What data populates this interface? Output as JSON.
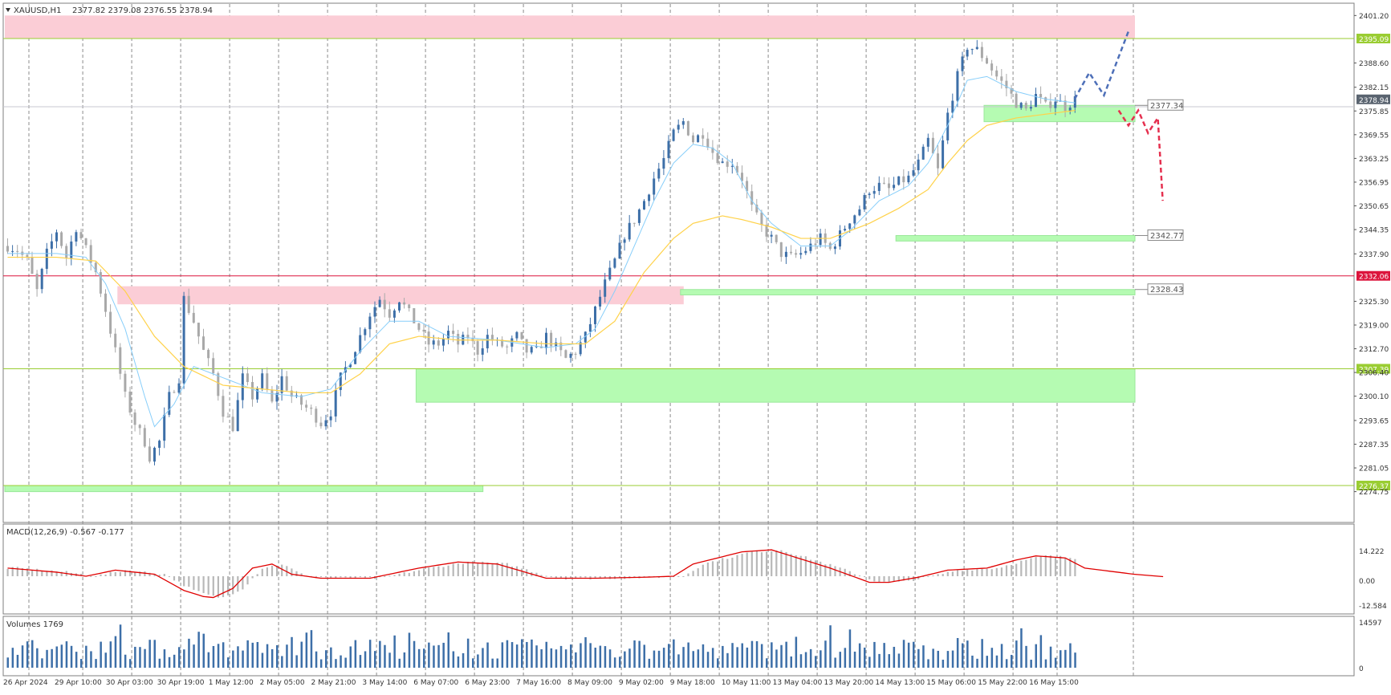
{
  "chart_header": {
    "symbol": "XAUUSD,H1",
    "ohlc": "2377.82 2379.08 2376.55 2378.94"
  },
  "chart_data": [
    {
      "type": "candlestick",
      "panel": "price",
      "symbol": "XAUUSD,H1",
      "y_ticks": [
        "2401.20",
        "2395.09",
        "2388.60",
        "2382.15",
        "2378.94",
        "2375.85",
        "2369.55",
        "2363.25",
        "2356.95",
        "2350.65",
        "2344.35",
        "2337.90",
        "2332.06",
        "2325.30",
        "2319.00",
        "2312.70",
        "2307.39",
        "2306.40",
        "2300.10",
        "2293.65",
        "2287.35",
        "2281.05",
        "2276.37",
        "2274.75"
      ],
      "ylim": [
        2274.75,
        2401.2
      ],
      "x_labels": [
        "26 Apr 2024",
        "29 Apr 10:00",
        "30 Apr 03:00",
        "30 Apr 19:00",
        "1 May 12:00",
        "2 May 05:00",
        "2 May 21:00",
        "3 May 14:00",
        "6 May 07:00",
        "6 May 23:00",
        "7 May 16:00",
        "8 May 09:00",
        "9 May 02:00",
        "9 May 18:00",
        "10 May 11:00",
        "13 May 04:00",
        "13 May 20:00",
        "14 May 13:00",
        "15 May 06:00",
        "15 May 22:00",
        "16 May 15:00"
      ],
      "price_path": [
        [
          0,
          2340
        ],
        [
          2,
          2339
        ],
        [
          4,
          2336
        ],
        [
          6,
          2328
        ],
        [
          8,
          2338
        ],
        [
          10,
          2344
        ],
        [
          12,
          2337
        ],
        [
          14,
          2345
        ],
        [
          16,
          2339
        ],
        [
          18,
          2333
        ],
        [
          20,
          2323
        ],
        [
          22,
          2312
        ],
        [
          24,
          2300
        ],
        [
          26,
          2293
        ],
        [
          28,
          2288
        ],
        [
          29,
          2284
        ],
        [
          31,
          2288
        ],
        [
          33,
          2300
        ],
        [
          35,
          2305
        ],
        [
          36,
          2326
        ],
        [
          38,
          2320
        ],
        [
          40,
          2312
        ],
        [
          42,
          2306
        ],
        [
          44,
          2296
        ],
        [
          46,
          2292
        ],
        [
          48,
          2305
        ],
        [
          50,
          2300
        ],
        [
          52,
          2305
        ],
        [
          54,
          2298
        ],
        [
          56,
          2305
        ],
        [
          58,
          2300
        ],
        [
          60,
          2298
        ],
        [
          62,
          2296
        ],
        [
          64,
          2293
        ],
        [
          66,
          2296
        ],
        [
          68,
          2305
        ],
        [
          70,
          2310
        ],
        [
          72,
          2316
        ],
        [
          74,
          2322
        ],
        [
          76,
          2326
        ],
        [
          78,
          2322
        ],
        [
          80,
          2326
        ],
        [
          82,
          2322
        ],
        [
          84,
          2318
        ],
        [
          86,
          2314
        ],
        [
          88,
          2314
        ],
        [
          90,
          2317
        ],
        [
          92,
          2314
        ],
        [
          94,
          2316
        ],
        [
          96,
          2312
        ],
        [
          98,
          2316
        ],
        [
          100,
          2314
        ],
        [
          102,
          2313
        ],
        [
          104,
          2316
        ],
        [
          106,
          2312
        ],
        [
          108,
          2312
        ],
        [
          110,
          2316
        ],
        [
          112,
          2313
        ],
        [
          114,
          2310
        ],
        [
          116,
          2312
        ],
        [
          118,
          2316
        ],
        [
          120,
          2323
        ],
        [
          122,
          2330
        ],
        [
          124,
          2336
        ],
        [
          126,
          2343
        ],
        [
          128,
          2347
        ],
        [
          130,
          2352
        ],
        [
          132,
          2358
        ],
        [
          134,
          2363
        ],
        [
          136,
          2370
        ],
        [
          138,
          2373
        ],
        [
          140,
          2368
        ],
        [
          142,
          2370
        ],
        [
          144,
          2365
        ],
        [
          146,
          2362
        ],
        [
          148,
          2362
        ],
        [
          150,
          2358
        ],
        [
          152,
          2350
        ],
        [
          154,
          2345
        ],
        [
          156,
          2342
        ],
        [
          158,
          2338
        ],
        [
          160,
          2337
        ],
        [
          162,
          2338
        ],
        [
          164,
          2340
        ],
        [
          166,
          2342
        ],
        [
          168,
          2339
        ],
        [
          170,
          2343
        ],
        [
          172,
          2347
        ],
        [
          174,
          2350
        ],
        [
          176,
          2355
        ],
        [
          178,
          2356
        ],
        [
          180,
          2355
        ],
        [
          182,
          2357
        ],
        [
          184,
          2358
        ],
        [
          186,
          2362
        ],
        [
          188,
          2368
        ],
        [
          190,
          2360
        ],
        [
          192,
          2375
        ],
        [
          194,
          2385
        ],
        [
          196,
          2393
        ],
        [
          198,
          2392
        ],
        [
          200,
          2389
        ],
        [
          202,
          2385
        ],
        [
          204,
          2382
        ],
        [
          206,
          2378
        ],
        [
          208,
          2376
        ],
        [
          210,
          2380
        ],
        [
          212,
          2377
        ],
        [
          214,
          2379
        ],
        [
          216,
          2377
        ],
        [
          218,
          2378.94
        ]
      ],
      "ema_fast": [
        [
          0,
          2338
        ],
        [
          10,
          2338
        ],
        [
          16,
          2337
        ],
        [
          20,
          2330
        ],
        [
          24,
          2318
        ],
        [
          28,
          2300
        ],
        [
          30,
          2292
        ],
        [
          34,
          2298
        ],
        [
          38,
          2308
        ],
        [
          44,
          2305
        ],
        [
          52,
          2301
        ],
        [
          60,
          2300
        ],
        [
          66,
          2302
        ],
        [
          72,
          2312
        ],
        [
          78,
          2320
        ],
        [
          84,
          2320
        ],
        [
          90,
          2316
        ],
        [
          100,
          2315
        ],
        [
          110,
          2313
        ],
        [
          116,
          2314
        ],
        [
          120,
          2318
        ],
        [
          124,
          2328
        ],
        [
          128,
          2340
        ],
        [
          132,
          2352
        ],
        [
          136,
          2362
        ],
        [
          140,
          2367
        ],
        [
          144,
          2366
        ],
        [
          148,
          2362
        ],
        [
          152,
          2352
        ],
        [
          156,
          2346
        ],
        [
          162,
          2340
        ],
        [
          168,
          2340
        ],
        [
          172,
          2344
        ],
        [
          178,
          2352
        ],
        [
          184,
          2356
        ],
        [
          188,
          2362
        ],
        [
          192,
          2372
        ],
        [
          196,
          2384
        ],
        [
          200,
          2385
        ],
        [
          206,
          2381
        ],
        [
          212,
          2379
        ],
        [
          218,
          2378
        ]
      ],
      "ema_slow": [
        [
          0,
          2337
        ],
        [
          10,
          2337
        ],
        [
          18,
          2336
        ],
        [
          24,
          2328
        ],
        [
          30,
          2316
        ],
        [
          36,
          2308
        ],
        [
          44,
          2303
        ],
        [
          52,
          2302
        ],
        [
          60,
          2301
        ],
        [
          66,
          2301
        ],
        [
          72,
          2306
        ],
        [
          78,
          2314
        ],
        [
          84,
          2316
        ],
        [
          92,
          2315
        ],
        [
          100,
          2315
        ],
        [
          110,
          2314
        ],
        [
          118,
          2314
        ],
        [
          124,
          2320
        ],
        [
          130,
          2333
        ],
        [
          136,
          2342
        ],
        [
          140,
          2346
        ],
        [
          146,
          2348
        ],
        [
          150,
          2347
        ],
        [
          156,
          2345
        ],
        [
          162,
          2342
        ],
        [
          168,
          2342
        ],
        [
          176,
          2346
        ],
        [
          182,
          2350
        ],
        [
          188,
          2355
        ],
        [
          192,
          2362
        ],
        [
          196,
          2368
        ],
        [
          200,
          2372
        ],
        [
          206,
          2374
        ],
        [
          212,
          2375
        ],
        [
          218,
          2376
        ]
      ],
      "zones": [
        {
          "kind": "resistance",
          "from_bar": 0,
          "to_bar": 235,
          "low": 2395.09,
          "high": 2401.2
        },
        {
          "kind": "resistance",
          "from_bar": 23,
          "to_bar": 138,
          "low": 2324.5,
          "high": 2329.3
        },
        {
          "kind": "support",
          "from_bar": 200,
          "to_bar": 235,
          "low": 2373.0,
          "high": 2377.34,
          "label": "2377.34"
        },
        {
          "kind": "support",
          "from_bar": 182,
          "to_bar": 235,
          "low": 2341.3,
          "high": 2342.77,
          "label": "2342.77"
        },
        {
          "kind": "support",
          "from_bar": 138,
          "to_bar": 235,
          "low": 2327.0,
          "high": 2328.43,
          "label": "2328.43"
        },
        {
          "kind": "support",
          "from_bar": 84,
          "to_bar": 235,
          "low": 2298.5,
          "high": 2307.39
        },
        {
          "kind": "support",
          "from_bar": 0,
          "to_bar": 97,
          "low": 2274.75,
          "high": 2276.37
        }
      ],
      "levels": [
        {
          "value": 2395.09,
          "color": "#9acd32",
          "label": "2395.09"
        },
        {
          "value": 2332.06,
          "color": "#dc143c",
          "label": "2332.06"
        },
        {
          "value": 2307.39,
          "color": "#9acd32",
          "label": "2307.39"
        },
        {
          "value": 2276.37,
          "color": "#9acd32",
          "label": "2276.37"
        }
      ],
      "current_price": "2378.94",
      "scenario_bull": [
        [
          218,
          2379
        ],
        [
          221,
          2386
        ],
        [
          224,
          2380
        ],
        [
          229,
          2397
        ]
      ],
      "scenario_bear": [
        [
          227,
          2376
        ],
        [
          229,
          2372
        ],
        [
          231,
          2376
        ],
        [
          233,
          2370
        ],
        [
          235,
          2374
        ],
        [
          236,
          2352
        ]
      ]
    },
    {
      "type": "line",
      "panel": "macd",
      "label": "MACD(12,26,9) -0.567 -0.177",
      "y_ticks": [
        "14.222",
        "0.00",
        "-12.584"
      ],
      "ylim": [
        -12.584,
        14.222
      ],
      "signal_path": [
        [
          0,
          4
        ],
        [
          10,
          2
        ],
        [
          16,
          0
        ],
        [
          22,
          3
        ],
        [
          30,
          1
        ],
        [
          36,
          -7
        ],
        [
          40,
          -10
        ],
        [
          42,
          -10.5
        ],
        [
          46,
          -6
        ],
        [
          50,
          4
        ],
        [
          54,
          6
        ],
        [
          58,
          1
        ],
        [
          64,
          -1
        ],
        [
          74,
          -1
        ],
        [
          84,
          4
        ],
        [
          92,
          7
        ],
        [
          100,
          6
        ],
        [
          110,
          -1
        ],
        [
          120,
          -1
        ],
        [
          130,
          -0.5
        ],
        [
          136,
          0
        ],
        [
          140,
          6
        ],
        [
          150,
          12
        ],
        [
          156,
          13
        ],
        [
          160,
          10
        ],
        [
          168,
          4
        ],
        [
          176,
          -3
        ],
        [
          180,
          -3
        ],
        [
          186,
          -0.5
        ],
        [
          192,
          3
        ],
        [
          200,
          4
        ],
        [
          206,
          8
        ],
        [
          210,
          10
        ],
        [
          216,
          9
        ],
        [
          220,
          4
        ],
        [
          230,
          1
        ],
        [
          236,
          -0.2
        ]
      ]
    },
    {
      "type": "bar",
      "panel": "volume",
      "label": "Volumes 1769",
      "y_ticks": [
        "14597",
        "0"
      ],
      "ylim": [
        0,
        14597
      ]
    }
  ]
}
